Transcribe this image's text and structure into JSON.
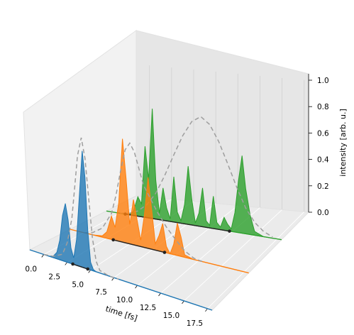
{
  "chart_data": {
    "type": "3d-line",
    "title": "",
    "xlabel": "time [fs]",
    "zlabel": "intensity [arb. u.]",
    "x_ticks": [
      "0.0",
      "2.5",
      "5.0",
      "7.5",
      "10.0",
      "12.5",
      "15.0",
      "17.5"
    ],
    "z_ticks": [
      "0.0",
      "0.2",
      "0.4",
      "0.6",
      "0.8",
      "1.0"
    ],
    "xlim": [
      -1.5,
      18
    ],
    "zlim": [
      0,
      1
    ],
    "grid": true,
    "series": [
      {
        "color": "#1f77b4",
        "t": [
          0,
          0.5,
          1,
          1.4,
          1.7,
          2,
          2.3,
          2.6,
          2.9,
          3.2,
          3.5,
          3.8,
          4.1,
          4.4,
          4.7,
          5,
          5.3,
          5.6,
          6,
          7,
          8,
          10,
          12.5,
          15,
          17
        ],
        "intensity": [
          0,
          0.0,
          0.01,
          0.05,
          0.15,
          0.35,
          0.45,
          0.33,
          0.12,
          0.05,
          0.2,
          0.55,
          0.9,
          0.7,
          0.3,
          0.06,
          0.01,
          0.0,
          0,
          0,
          0,
          0,
          0,
          0,
          0
        ],
        "envelope_t": [
          0,
          1,
          2,
          2.5,
          3,
          3.3,
          3.6,
          4,
          4.4,
          4.8,
          5.2,
          5.6,
          6,
          7,
          8
        ],
        "envelope": [
          0,
          0.01,
          0.05,
          0.15,
          0.35,
          0.6,
          0.85,
          1.0,
          0.85,
          0.55,
          0.25,
          0.08,
          0.02,
          0,
          0
        ],
        "dots_t": [
          3.1,
          4.7
        ]
      },
      {
        "color": "#ff7f0e",
        "t": [
          0,
          1,
          2,
          2.5,
          3,
          3.4,
          3.8,
          4.2,
          4.6,
          5,
          5.4,
          5.8,
          6.2,
          6.6,
          7,
          7.4,
          7.8,
          8.2,
          8.6,
          9,
          9.4,
          9.8,
          10.2,
          10.6,
          11,
          12,
          13,
          15,
          17
        ],
        "intensity": [
          0,
          0,
          0.01,
          0.05,
          0.18,
          0.1,
          0.3,
          0.8,
          0.5,
          0.15,
          0.35,
          0.2,
          0.05,
          0.25,
          0.55,
          0.3,
          0.05,
          0.12,
          0.22,
          0.05,
          0.0,
          0.08,
          0.25,
          0.15,
          0.02,
          0,
          0,
          0,
          0
        ],
        "envelope_t": [
          0,
          1,
          2,
          3,
          3.5,
          4,
          4.5,
          5,
          5.5,
          6,
          6.5,
          7,
          8,
          9,
          10,
          11,
          12,
          13
        ],
        "envelope": [
          0,
          0.02,
          0.07,
          0.2,
          0.35,
          0.55,
          0.72,
          0.78,
          0.72,
          0.6,
          0.48,
          0.42,
          0.3,
          0.2,
          0.12,
          0.05,
          0.01,
          0
        ],
        "dots_t": [
          3.2,
          8.8
        ]
      },
      {
        "color": "#2ca02c",
        "t": [
          0,
          1,
          1.5,
          2,
          2.4,
          2.8,
          3.2,
          3.6,
          4,
          4.4,
          4.8,
          5.2,
          5.6,
          6,
          6.4,
          6.8,
          7.2,
          7.6,
          8,
          8.4,
          8.8,
          9.2,
          9.6,
          10,
          10.4,
          10.8,
          11.2,
          11.6,
          12,
          12.4,
          12.8,
          13.2,
          13.6,
          14,
          14.5,
          15,
          16,
          17
        ],
        "intensity": [
          0,
          0,
          0.03,
          0.15,
          0.1,
          0.55,
          0.3,
          0.85,
          0.3,
          0.05,
          0.25,
          0.1,
          0.02,
          0.35,
          0.08,
          0.02,
          0.15,
          0.45,
          0.2,
          0.02,
          0.1,
          0.3,
          0.05,
          0.02,
          0.25,
          0.05,
          0.02,
          0.1,
          0.05,
          0.02,
          0.15,
          0.4,
          0.6,
          0.35,
          0.15,
          0.03,
          0,
          0
        ],
        "envelope_t": [
          0,
          1,
          2,
          3,
          4,
          5,
          6,
          7,
          8,
          9,
          10,
          11,
          12,
          13,
          14,
          15,
          16,
          17
        ],
        "envelope": [
          0,
          0.01,
          0.04,
          0.1,
          0.2,
          0.35,
          0.52,
          0.68,
          0.8,
          0.85,
          0.8,
          0.68,
          0.52,
          0.35,
          0.2,
          0.1,
          0.04,
          0.01
        ],
        "dots_t": [
          0.6,
          12.2
        ]
      }
    ]
  }
}
